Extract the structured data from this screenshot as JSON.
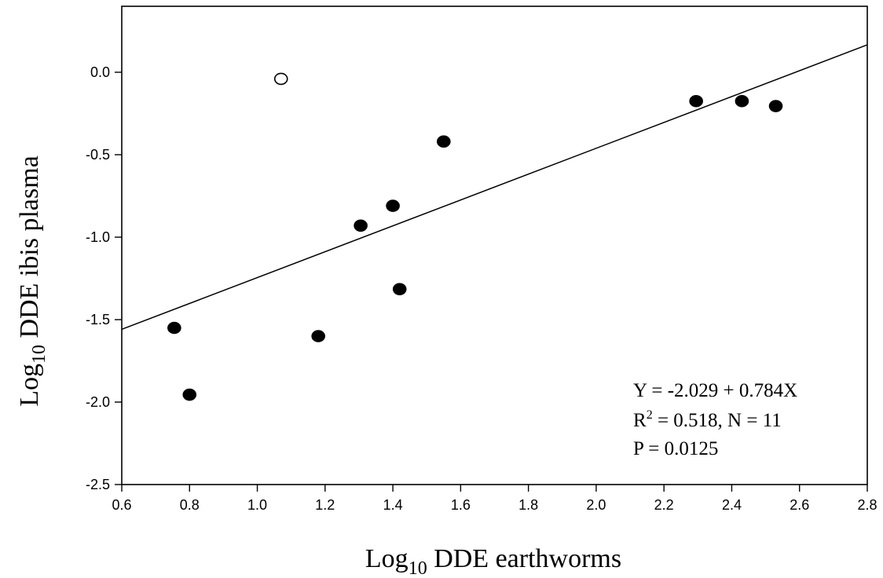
{
  "chart_data": {
    "type": "scatter",
    "xlabel": "Log10 DDE earthworms",
    "xlabel_parts": {
      "base": "Log",
      "sub": "10",
      "rest": " DDE earthworms"
    },
    "ylabel": "Log10 DDE ibis plasma",
    "ylabel_parts": {
      "base": "Log",
      "sub": "10",
      "rest": " DDE ibis plasma"
    },
    "xlim": [
      0.6,
      2.8
    ],
    "ylim": [
      -2.5,
      0.4
    ],
    "x_ticks": [
      0.6,
      0.8,
      1.0,
      1.2,
      1.4,
      1.6,
      1.8,
      2.0,
      2.2,
      2.4,
      2.6,
      2.8
    ],
    "x_tick_labels": [
      "0.6",
      "0.8",
      "1.0",
      "1.2",
      "1.4",
      "1.6",
      "1.8",
      "2.0",
      "2.2",
      "2.4",
      "2.6",
      "2.8"
    ],
    "y_ticks": [
      -2.5,
      -2.0,
      -1.5,
      -1.0,
      -0.5,
      0.0
    ],
    "y_tick_labels": [
      "-2.5",
      "-2.0",
      "-1.5",
      "-1.0",
      "-0.5",
      "0.0"
    ],
    "grid": false,
    "series": [
      {
        "marker": "filled-circle",
        "color": "#000000",
        "points": [
          {
            "x": 0.755,
            "y": -1.55
          },
          {
            "x": 0.8,
            "y": -1.955
          },
          {
            "x": 1.18,
            "y": -1.6
          },
          {
            "x": 1.305,
            "y": -0.93
          },
          {
            "x": 1.4,
            "y": -0.81
          },
          {
            "x": 1.42,
            "y": -1.315
          },
          {
            "x": 1.55,
            "y": -0.42
          },
          {
            "x": 2.295,
            "y": -0.175
          },
          {
            "x": 2.43,
            "y": -0.175
          },
          {
            "x": 2.53,
            "y": -0.205
          }
        ]
      },
      {
        "marker": "open-circle",
        "color": "#000000",
        "points": [
          {
            "x": 1.07,
            "y": -0.04
          }
        ]
      }
    ],
    "regression": {
      "intercept": -2.029,
      "slope": 0.784,
      "x_range": [
        0.6,
        2.8
      ]
    },
    "annotations": {
      "equation": "Y = -2.029 + 0.784X",
      "r2_prefix": "R",
      "r2_sup": "2",
      "r2_rest": " = 0.518, N = 11",
      "p_value": "P = 0.0125"
    }
  }
}
